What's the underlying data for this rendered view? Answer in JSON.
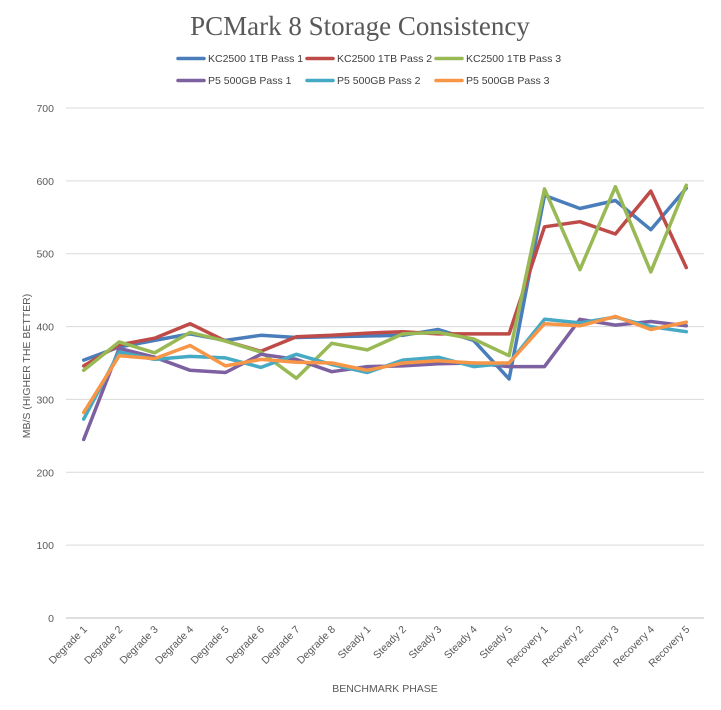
{
  "chart_data": {
    "type": "line",
    "title": "PCMark 8 Storage Consistency",
    "xlabel": "BENCHMARK PHASE",
    "ylabel": "MB/S (HIGHER THE BETTER)",
    "ylim": [
      0,
      700
    ],
    "yticks": [
      0,
      100,
      200,
      300,
      400,
      500,
      600,
      700
    ],
    "grid": true,
    "legend_position": "top",
    "categories": [
      "Degrade 1",
      "Degrade 2",
      "Degrade 3",
      "Degrade 4",
      "Degrade 5",
      "Degrade 6",
      "Degrade 7",
      "Degrade 8",
      "Steady 1",
      "Steady 2",
      "Steady 3",
      "Steady 4",
      "Steady 5",
      "Recovery 1",
      "Recovery 2",
      "Recovery 3",
      "Recovery 4",
      "Recovery 5"
    ],
    "series": [
      {
        "name": "KC2500 1TB Pass 1",
        "color": "#4a7ebb",
        "values": [
          354,
          372,
          381,
          390,
          381,
          388,
          385,
          386,
          387,
          388,
          396,
          381,
          328,
          580,
          562,
          573,
          533,
          590
        ]
      },
      {
        "name": "KC2500 1TB Pass 2",
        "color": "#be4b48",
        "values": [
          346,
          375,
          384,
          404,
          380,
          366,
          386,
          388,
          391,
          393,
          390,
          390,
          390,
          537,
          544,
          527,
          586,
          481
        ]
      },
      {
        "name": "KC2500 1TB Pass 3",
        "color": "#98b954",
        "values": [
          340,
          379,
          364,
          392,
          380,
          365,
          329,
          377,
          368,
          390,
          392,
          383,
          360,
          589,
          478,
          592,
          475,
          594
        ]
      },
      {
        "name": "P5 500GB Pass 1",
        "color": "#7d60a0",
        "values": [
          245,
          370,
          358,
          340,
          337,
          362,
          355,
          338,
          345,
          346,
          349,
          350,
          345,
          345,
          410,
          402,
          407,
          401
        ]
      },
      {
        "name": "P5 500GB Pass 2",
        "color": "#46aac5",
        "values": [
          273,
          365,
          355,
          359,
          357,
          344,
          362,
          348,
          337,
          354,
          358,
          345,
          350,
          410,
          405,
          413,
          400,
          393
        ]
      },
      {
        "name": "P5 500GB Pass 3",
        "color": "#f79646",
        "values": [
          282,
          360,
          356,
          374,
          346,
          355,
          351,
          350,
          340,
          350,
          353,
          350,
          350,
          404,
          401,
          414,
          396,
          406
        ]
      }
    ]
  }
}
